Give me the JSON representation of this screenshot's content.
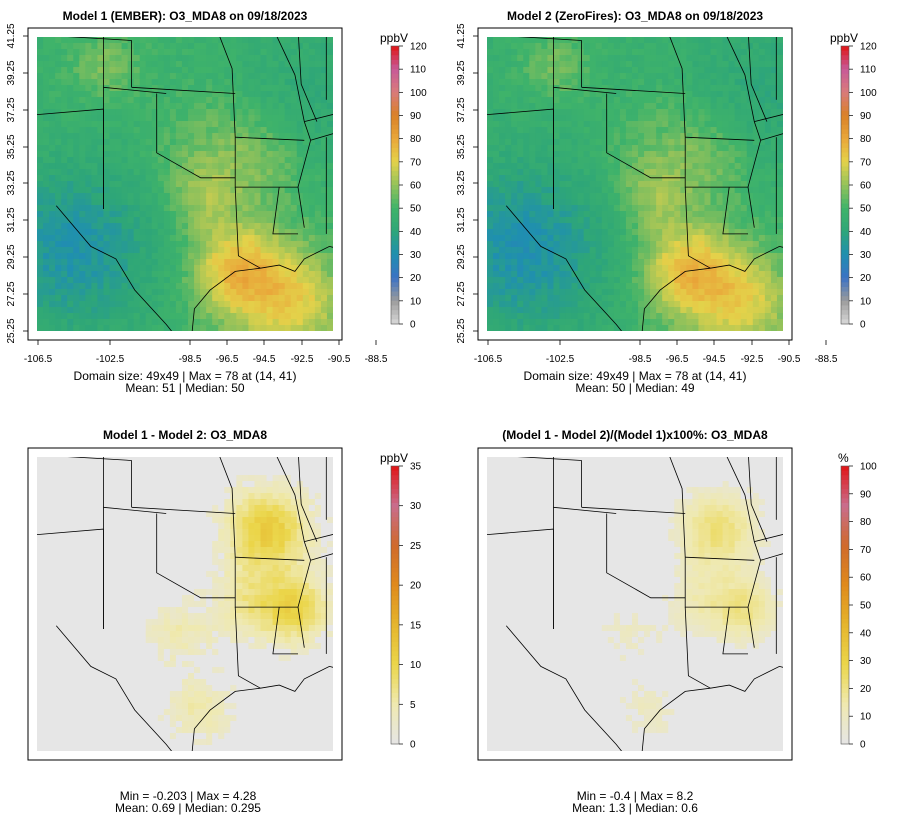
{
  "colors": {
    "conc_scale": [
      "#d9d9d9",
      "#9b9b9b",
      "#3b72c4",
      "#1f8fb0",
      "#2ea678",
      "#3fb36a",
      "#94c25a",
      "#e4d24a",
      "#e9a73a",
      "#d98127",
      "#d97a7a",
      "#c75a98",
      "#e01515"
    ],
    "diff_scale": [
      "#e5e5e5",
      "#efe9b0",
      "#ebd64a",
      "#e5b52d",
      "#df8a1c",
      "#cf6a2c",
      "#c96d8c",
      "#e01515"
    ],
    "map_lines": "#000000",
    "diff_background": "#e6e6e6"
  },
  "panels": [
    {
      "id": "p1",
      "kind": "conc",
      "title": "Model 1 (EMBER): O3_MDA8 on 09/18/2023",
      "unit": "ppbV",
      "colorbar_ticks": [
        "0",
        "10",
        "20",
        "30",
        "40",
        "50",
        "60",
        "70",
        "80",
        "90",
        "100",
        "110",
        "120"
      ],
      "x_ticks": [
        "-106.5",
        "-102.5",
        "-98.5",
        "-96.5",
        "-94.5",
        "-92.5",
        "-90.5",
        "-88.5"
      ],
      "y_ticks": [
        "25.25",
        "27.25",
        "29.25",
        "31.25",
        "33.25",
        "35.25",
        "37.25",
        "39.25",
        "41.25"
      ],
      "stats_line1": "Domain size: 49x49 | Max = 78 at (14, 41)",
      "stats_line2": "Mean: 51 |  Median: 50",
      "scale_max": 120,
      "field_offset": 0
    },
    {
      "id": "p2",
      "kind": "conc",
      "title": "Model 2 (ZeroFires): O3_MDA8 on 09/18/2023",
      "unit": "ppbV",
      "colorbar_ticks": [
        "0",
        "10",
        "20",
        "30",
        "40",
        "50",
        "60",
        "70",
        "80",
        "90",
        "100",
        "110",
        "120"
      ],
      "x_ticks": [
        "-106.5",
        "-102.5",
        "-98.5",
        "-96.5",
        "-94.5",
        "-92.5",
        "-90.5",
        "-88.5"
      ],
      "y_ticks": [
        "25.25",
        "27.25",
        "29.25",
        "31.25",
        "33.25",
        "35.25",
        "37.25",
        "39.25",
        "41.25"
      ],
      "stats_line1": "Domain size: 49x49 | Max = 78 at (14, 41)",
      "stats_line2": "Mean: 50 |  Median: 49",
      "scale_max": 120,
      "field_offset": -1
    },
    {
      "id": "p3",
      "kind": "diff",
      "title": "Model 1 - Model 2: O3_MDA8",
      "unit": "ppbV",
      "colorbar_ticks": [
        "0",
        "5",
        "10",
        "15",
        "20",
        "25",
        "30",
        "35"
      ],
      "stats_line1": "Min = -0.203 | Max = 4.28",
      "stats_line2": "Mean: 0.69 |  Median: 0.295",
      "scale_max": 35
    },
    {
      "id": "p4",
      "kind": "diff",
      "title": "(Model 1 - Model 2)/(Model 1)x100%: O3_MDA8",
      "unit": "%",
      "colorbar_ticks": [
        "0",
        "10",
        "20",
        "30",
        "40",
        "50",
        "60",
        "70",
        "80",
        "90",
        "100"
      ],
      "stats_line1": "Min = -0.4 | Max = 8.2",
      "stats_line2": "Mean: 1.3 |  Median: 0.6",
      "scale_max": 100
    }
  ]
}
